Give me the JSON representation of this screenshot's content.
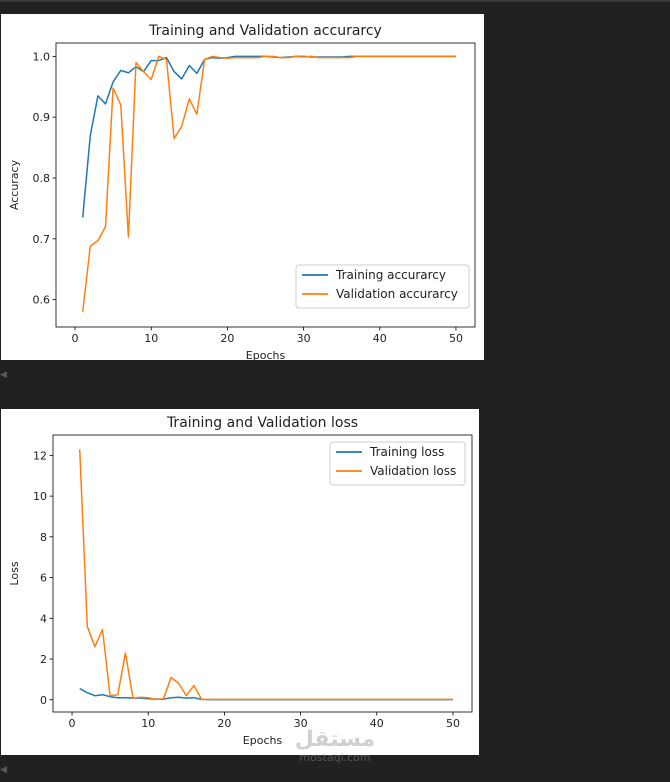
{
  "chart_data": [
    {
      "type": "line",
      "title": "Training and Validation accurarcy",
      "xlabel": "Epochs",
      "ylabel": "Accuracy",
      "xlim": [
        -2.5,
        52.5
      ],
      "ylim": [
        0.555,
        1.022
      ],
      "xticks": [
        0,
        10,
        20,
        30,
        40,
        50
      ],
      "xtick_labels": [
        "0",
        "10",
        "20",
        "30",
        "40",
        "50"
      ],
      "yticks": [
        0.6,
        0.7,
        0.8,
        0.9,
        1.0
      ],
      "ytick_labels": [
        "0.6",
        "0.7",
        "0.8",
        "0.9",
        "1.0"
      ],
      "legend_position": "lower-right",
      "series": [
        {
          "name": "Training accurarcy",
          "color": "#1f77b4",
          "x": [
            1,
            2,
            3,
            4,
            5,
            6,
            7,
            8,
            9,
            10,
            11,
            12,
            13,
            14,
            15,
            16,
            17,
            18,
            19,
            20,
            21,
            22,
            23,
            24,
            25,
            26,
            27,
            28,
            29,
            30,
            31,
            32,
            33,
            34,
            35,
            36,
            37,
            38,
            39,
            40,
            41,
            42,
            43,
            44,
            45,
            46,
            47,
            48,
            49,
            50
          ],
          "y": [
            0.735,
            0.87,
            0.935,
            0.922,
            0.958,
            0.977,
            0.973,
            0.983,
            0.975,
            0.993,
            0.993,
            0.998,
            0.975,
            0.963,
            0.985,
            0.972,
            0.995,
            0.998,
            0.997,
            0.998,
            1.0,
            1.0,
            1.0,
            1.0,
            1.0,
            0.999,
            0.998,
            0.999,
            1.0,
            1.0,
            0.999,
            0.999,
            0.999,
            0.999,
            0.999,
            1.0,
            1.0,
            1.0,
            1.0,
            1.0,
            1.0,
            1.0,
            1.0,
            1.0,
            1.0,
            1.0,
            1.0,
            1.0,
            1.0,
            1.0
          ]
        },
        {
          "name": "Validation accurarcy",
          "color": "#ff7f0e",
          "x": [
            1,
            2,
            3,
            4,
            5,
            6,
            7,
            8,
            9,
            10,
            11,
            12,
            13,
            14,
            15,
            16,
            17,
            18,
            19,
            20,
            21,
            22,
            23,
            24,
            25,
            26,
            27,
            28,
            29,
            30,
            31,
            32,
            33,
            34,
            35,
            36,
            37,
            38,
            39,
            40,
            41,
            42,
            43,
            44,
            45,
            46,
            47,
            48,
            49,
            50
          ],
          "y": [
            0.58,
            0.688,
            0.697,
            0.72,
            0.948,
            0.92,
            0.703,
            0.99,
            0.975,
            0.962,
            1.0,
            0.995,
            0.865,
            0.885,
            0.93,
            0.905,
            0.995,
            1.0,
            0.998,
            0.997,
            0.998,
            0.998,
            0.998,
            0.998,
            1.0,
            1.0,
            0.998,
            0.998,
            1.0,
            0.999,
            1.0,
            0.998,
            0.998,
            0.998,
            0.998,
            0.998,
            1.0,
            1.0,
            1.0,
            1.0,
            1.0,
            1.0,
            1.0,
            1.0,
            1.0,
            1.0,
            1.0,
            1.0,
            1.0,
            1.0
          ]
        }
      ]
    },
    {
      "type": "line",
      "title": "Training and Validation loss",
      "xlabel": "Epochs",
      "ylabel": "Loss",
      "xlim": [
        -2.5,
        52.5
      ],
      "ylim": [
        -0.6,
        13.0
      ],
      "xticks": [
        0,
        10,
        20,
        30,
        40,
        50
      ],
      "xtick_labels": [
        "0",
        "10",
        "20",
        "30",
        "40",
        "50"
      ],
      "yticks": [
        0,
        2,
        4,
        6,
        8,
        10,
        12
      ],
      "ytick_labels": [
        "0",
        "2",
        "4",
        "6",
        "8",
        "10",
        "12"
      ],
      "legend_position": "upper-right",
      "series": [
        {
          "name": "Training loss",
          "color": "#1f77b4",
          "x": [
            1,
            2,
            3,
            4,
            5,
            6,
            7,
            8,
            9,
            10,
            11,
            12,
            13,
            14,
            15,
            16,
            17,
            18,
            19,
            20,
            21,
            22,
            23,
            24,
            25,
            26,
            27,
            28,
            29,
            30,
            31,
            32,
            33,
            34,
            35,
            36,
            37,
            38,
            39,
            40,
            41,
            42,
            43,
            44,
            45,
            46,
            47,
            48,
            49,
            50
          ],
          "y": [
            0.55,
            0.35,
            0.2,
            0.25,
            0.15,
            0.1,
            0.1,
            0.08,
            0.08,
            0.05,
            0.04,
            0.03,
            0.1,
            0.12,
            0.08,
            0.1,
            0.02,
            0.01,
            0.01,
            0.01,
            0.01,
            0.01,
            0.01,
            0.01,
            0.01,
            0.01,
            0.01,
            0.01,
            0.01,
            0.01,
            0.01,
            0.01,
            0.01,
            0.01,
            0.01,
            0.01,
            0.01,
            0.01,
            0.01,
            0.01,
            0.01,
            0.01,
            0.01,
            0.01,
            0.01,
            0.01,
            0.01,
            0.01,
            0.01,
            0.01
          ]
        },
        {
          "name": "Validation loss",
          "color": "#ff7f0e",
          "x": [
            1,
            2,
            3,
            4,
            5,
            6,
            7,
            8,
            9,
            10,
            11,
            12,
            13,
            14,
            15,
            16,
            17,
            18,
            19,
            20,
            21,
            22,
            23,
            24,
            25,
            26,
            27,
            28,
            29,
            30,
            31,
            32,
            33,
            34,
            35,
            36,
            37,
            38,
            39,
            40,
            41,
            42,
            43,
            44,
            45,
            46,
            47,
            48,
            49,
            50
          ],
          "y": [
            12.3,
            3.6,
            2.6,
            3.45,
            0.2,
            0.25,
            2.3,
            0.08,
            0.12,
            0.1,
            0.02,
            0.05,
            1.1,
            0.8,
            0.2,
            0.7,
            0.02,
            0.02,
            0.02,
            0.02,
            0.02,
            0.02,
            0.02,
            0.02,
            0.02,
            0.02,
            0.02,
            0.02,
            0.02,
            0.02,
            0.02,
            0.02,
            0.02,
            0.02,
            0.02,
            0.02,
            0.02,
            0.02,
            0.02,
            0.02,
            0.02,
            0.02,
            0.02,
            0.02,
            0.02,
            0.02,
            0.02,
            0.02,
            0.02,
            0.02
          ]
        }
      ]
    }
  ],
  "watermark": {
    "arabic_text": "مستقل",
    "latin_text": "mostaql.com"
  }
}
